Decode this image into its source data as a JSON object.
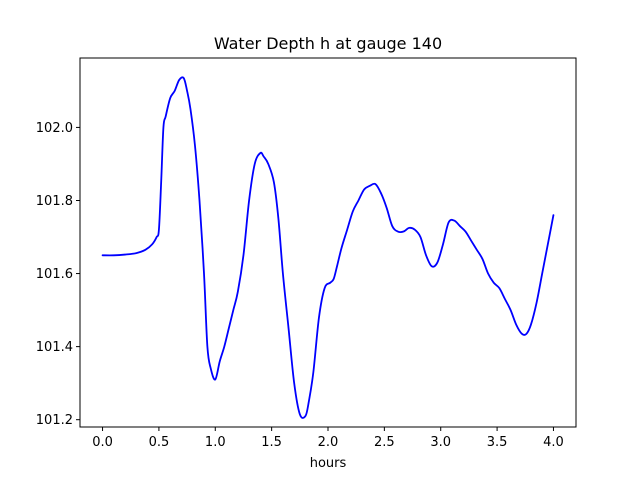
{
  "chart_data": {
    "type": "line",
    "title": "Water Depth h at gauge 140",
    "xlabel": "hours",
    "ylabel": "",
    "xlim": [
      -0.2,
      4.2
    ],
    "ylim": [
      101.18,
      102.19
    ],
    "xticks": [
      0.0,
      0.5,
      1.0,
      1.5,
      2.0,
      2.5,
      3.0,
      3.5,
      4.0
    ],
    "xtick_labels": [
      "0.0",
      "0.5",
      "1.0",
      "1.5",
      "2.0",
      "2.5",
      "3.0",
      "3.5",
      "4.0"
    ],
    "yticks": [
      101.2,
      101.4,
      101.6,
      101.8,
      102.0
    ],
    "ytick_labels": [
      "101.2",
      "101.4",
      "101.6",
      "101.8",
      "102.0"
    ],
    "grid": false,
    "series": [
      {
        "color": "#0000ff",
        "x": [
          0.0,
          0.1,
          0.2,
          0.3,
          0.38,
          0.44,
          0.48,
          0.5,
          0.52,
          0.54,
          0.56,
          0.6,
          0.64,
          0.68,
          0.72,
          0.75,
          0.78,
          0.82,
          0.86,
          0.9,
          0.93,
          0.96,
          1.0,
          1.04,
          1.08,
          1.12,
          1.16,
          1.2,
          1.25,
          1.3,
          1.35,
          1.4,
          1.43,
          1.47,
          1.52,
          1.56,
          1.6,
          1.65,
          1.7,
          1.75,
          1.8,
          1.83,
          1.87,
          1.92,
          1.97,
          2.02,
          2.05,
          2.08,
          2.12,
          2.17,
          2.22,
          2.27,
          2.32,
          2.37,
          2.42,
          2.47,
          2.52,
          2.57,
          2.62,
          2.67,
          2.72,
          2.77,
          2.82,
          2.87,
          2.92,
          2.97,
          3.02,
          3.07,
          3.12,
          3.17,
          3.22,
          3.27,
          3.32,
          3.37,
          3.42,
          3.47,
          3.52,
          3.57,
          3.62,
          3.67,
          3.72,
          3.76,
          3.8,
          3.85,
          3.9,
          3.95,
          4.0
        ],
        "y": [
          101.65,
          101.65,
          101.652,
          101.656,
          101.665,
          101.68,
          101.7,
          101.72,
          101.85,
          102.0,
          102.03,
          102.08,
          102.1,
          102.13,
          102.135,
          102.1,
          102.05,
          101.95,
          101.8,
          101.6,
          101.4,
          101.34,
          101.31,
          101.36,
          101.4,
          101.45,
          101.5,
          101.55,
          101.65,
          101.8,
          101.9,
          101.93,
          101.92,
          101.9,
          101.85,
          101.75,
          101.6,
          101.45,
          101.3,
          101.215,
          101.21,
          101.25,
          101.33,
          101.48,
          101.56,
          101.575,
          101.585,
          101.62,
          101.67,
          101.72,
          101.77,
          101.8,
          101.83,
          101.84,
          101.845,
          101.82,
          101.78,
          101.73,
          101.715,
          101.715,
          101.725,
          101.72,
          101.7,
          101.65,
          101.62,
          101.63,
          101.68,
          101.74,
          101.745,
          101.73,
          101.715,
          101.69,
          101.665,
          101.64,
          101.6,
          101.575,
          101.56,
          101.53,
          101.5,
          101.46,
          101.435,
          101.435,
          101.46,
          101.52,
          101.6,
          101.68,
          101.76
        ]
      }
    ]
  }
}
